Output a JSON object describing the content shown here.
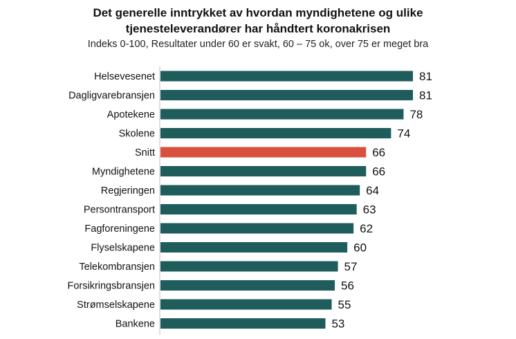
{
  "chart_data": {
    "type": "bar",
    "orientation": "horizontal",
    "title_line1": "Det generelle inntrykket av hvordan myndighetene og ulike",
    "title_line2": "tjenesteleverandører har håndtert koronakrisen",
    "subtitle": "Indeks 0-100, Resultater under 60 er svakt, 60 – 75 ok, over 75 er meget bra",
    "categories": [
      "Helsevesenet",
      "Dagligvarebransjen",
      "Apotekene",
      "Skolene",
      "Snitt",
      "Myndighetene",
      "Regjeringen",
      "Persontransport",
      "Fagforeningene",
      "Flyselskapene",
      "Telekombransjen",
      "Forsikringsbransjen",
      "Strømselskapene",
      "Bankene"
    ],
    "values": [
      81,
      81,
      78,
      74,
      66,
      66,
      64,
      63,
      62,
      60,
      57,
      56,
      55,
      53
    ],
    "value_labels": [
      "81",
      "81",
      "78",
      "74",
      "66",
      "66",
      "64",
      "63",
      "62",
      "60",
      "57",
      "56",
      "55",
      "53"
    ],
    "highlight_category": "Snitt",
    "colors": {
      "bar": "#1f5c5c",
      "highlight": "#d9503f",
      "axis": "#bfbfbf"
    },
    "xlim": [
      0,
      81
    ],
    "grid": false,
    "legend": "none"
  }
}
